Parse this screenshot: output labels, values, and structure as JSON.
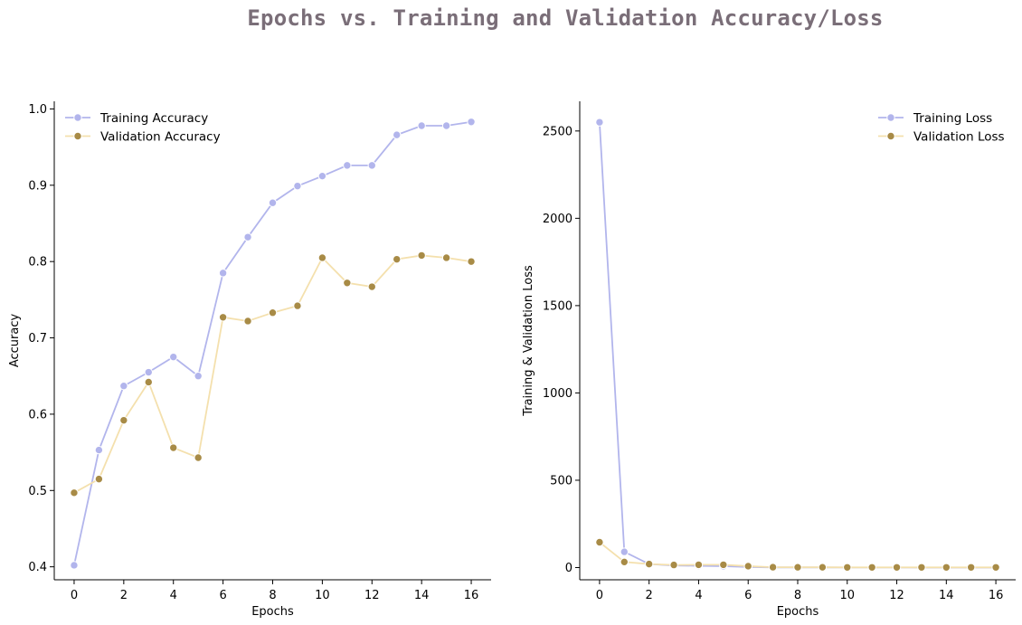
{
  "figure": {
    "title": "Epochs vs. Training and Validation Accuracy/Loss"
  },
  "colors": {
    "training": "#b2b5ec",
    "training_marker": "#b2b5ec",
    "validation": "#f4e0ad",
    "validation_marker": "#a88b46",
    "title": "#7a6e78"
  },
  "chart_data": [
    {
      "type": "line",
      "xlabel": "Epochs",
      "ylabel": "Accuracy",
      "xlim": [
        -0.8,
        16.8
      ],
      "ylim": [
        0.383,
        1.01
      ],
      "xticks": [
        0,
        2,
        4,
        6,
        8,
        10,
        12,
        14,
        16
      ],
      "yticks": [
        0.4,
        0.5,
        0.6,
        0.7,
        0.8,
        0.9,
        1.0
      ],
      "ytick_labels": [
        "0.4",
        "0.5",
        "0.6",
        "0.7",
        "0.8",
        "0.9",
        "1.0"
      ],
      "grid": false,
      "legend_position": "top-left",
      "x": [
        0,
        1,
        2,
        3,
        4,
        5,
        6,
        7,
        8,
        9,
        10,
        11,
        12,
        13,
        14,
        15,
        16
      ],
      "series": [
        {
          "name": "Training Accuracy",
          "values": [
            0.402,
            0.553,
            0.637,
            0.655,
            0.675,
            0.65,
            0.785,
            0.832,
            0.877,
            0.899,
            0.912,
            0.926,
            0.926,
            0.966,
            0.978,
            0.978,
            0.983
          ]
        },
        {
          "name": "Validation Accuracy",
          "values": [
            0.497,
            0.515,
            0.592,
            0.642,
            0.556,
            0.543,
            0.727,
            0.722,
            0.733,
            0.742,
            0.805,
            0.772,
            0.767,
            0.803,
            0.808,
            0.805,
            0.8
          ]
        }
      ]
    },
    {
      "type": "line",
      "xlabel": "Epochs",
      "ylabel": "Training & Validation Loss",
      "xlim": [
        -0.8,
        16.8
      ],
      "ylim": [
        -70,
        2670
      ],
      "xticks": [
        0,
        2,
        4,
        6,
        8,
        10,
        12,
        14,
        16
      ],
      "yticks": [
        0,
        500,
        1000,
        1500,
        2000,
        2500
      ],
      "ytick_labels": [
        "0",
        "500",
        "1000",
        "1500",
        "2000",
        "2500"
      ],
      "grid": false,
      "legend_position": "top-right",
      "x": [
        0,
        1,
        2,
        3,
        4,
        5,
        6,
        7,
        8,
        9,
        10,
        11,
        12,
        13,
        14,
        15,
        16
      ],
      "series": [
        {
          "name": "Training Loss",
          "values": [
            2550,
            90,
            20,
            12,
            10,
            8,
            3,
            1,
            1,
            1,
            0.5,
            0.5,
            0.5,
            0.3,
            0.3,
            0.3,
            0.3
          ]
        },
        {
          "name": "Validation Loss",
          "values": [
            145,
            32,
            20,
            15,
            16,
            16,
            8,
            2,
            1.5,
            1.5,
            1,
            1,
            1,
            1,
            1,
            1,
            1
          ]
        }
      ]
    }
  ]
}
